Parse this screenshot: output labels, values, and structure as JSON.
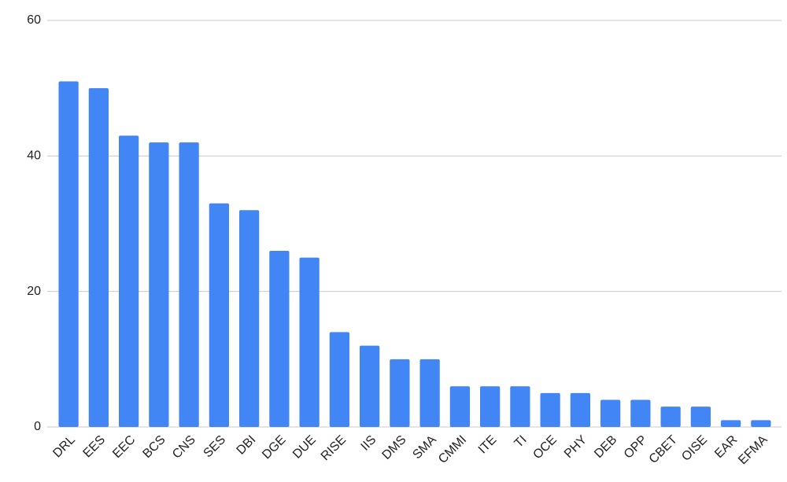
{
  "chart_data": {
    "type": "bar",
    "categories": [
      "DRL",
      "EES",
      "EEC",
      "BCS",
      "CNS",
      "SES",
      "DBI",
      "DGE",
      "DUE",
      "RISE",
      "IIS",
      "DMS",
      "SMA",
      "CMMI",
      "ITE",
      "TI",
      "OCE",
      "PHY",
      "DEB",
      "OPP",
      "CBET",
      "OISE",
      "EAR",
      "EFMA"
    ],
    "values": [
      51,
      50,
      43,
      42,
      42,
      33,
      32,
      26,
      25,
      14,
      12,
      10,
      10,
      6,
      6,
      6,
      5,
      5,
      4,
      4,
      3,
      3,
      1,
      1
    ],
    "color": "#4285f4",
    "ylim": [
      0,
      60
    ],
    "yticks": [
      0,
      20,
      40,
      60
    ],
    "grid": true
  }
}
